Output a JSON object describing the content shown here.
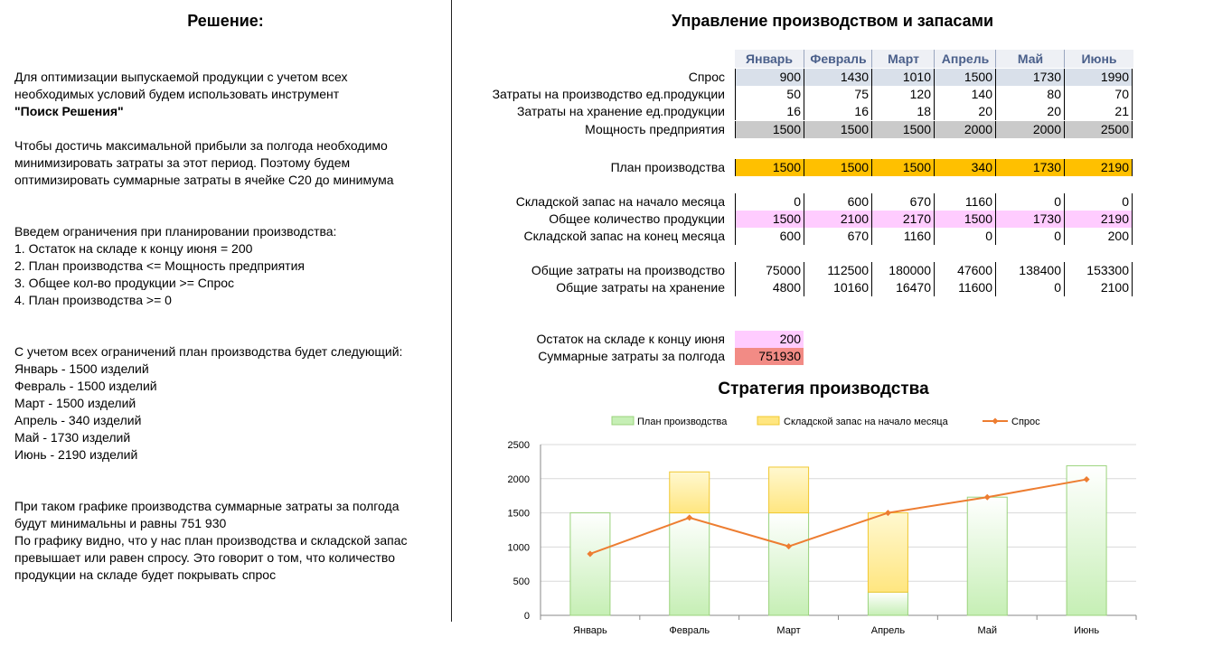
{
  "left": {
    "title": "Решение:",
    "intro": [
      "Для оптимизации выпускаемой  продукции с учетом всех",
      "необходимых условий будем использовать инструмент"
    ],
    "tool_name": "\"Поиск Решения\"",
    "goal": [
      "Чтобы достичь максимальной прибыли за полгода необходимо",
      "минимизировать затраты за этот период. Поэтому будем",
      "оптимизировать суммарные затраты в ячейке С20 до минимума"
    ],
    "constraints": [
      "Введем ограничения при планировании производства:",
      "1. Остаток на складе к концу июня = 200",
      "2. План производства <= Мощность предприятия",
      "3. Общее кол-во продукции >= Спрос",
      "4. План производства >= 0"
    ],
    "plan": [
      "С учетом всех ограничений план производства будет следующий:",
      "Январь - 1500 изделий",
      "Февраль - 1500 изделий",
      "Март - 1500 изделий",
      "Апрель - 340 изделий",
      "Май - 1730 изделий",
      "Июнь - 2190 изделий"
    ],
    "conclusion": [
      "При таком графике производства суммарные затраты за полгода",
      "будут минимальны и равны 751 930",
      "По графику видно, что у нас план производства и складской запас",
      "превышает или равен спросу. Это говорит о том, что количество",
      "продукции на складе будет покрывать спрос"
    ]
  },
  "right": {
    "title": "Управление производством и запасами",
    "months": [
      "Январь",
      "Февраль",
      "Март",
      "Апрель",
      "Май",
      "Июнь"
    ],
    "rows": {
      "demand": {
        "label": "Спрос",
        "values": [
          "900",
          "1430",
          "1010",
          "1500",
          "1730",
          "1990"
        ]
      },
      "prod_cost": {
        "label": "Затраты на производство ед.продукции",
        "values": [
          "50",
          "75",
          "120",
          "140",
          "80",
          "70"
        ]
      },
      "store_cost": {
        "label": "Затраты на хранение ед.продукции",
        "values": [
          "16",
          "16",
          "18",
          "20",
          "20",
          "21"
        ]
      },
      "capacity": {
        "label": "Мощность предприятия",
        "values": [
          "1500",
          "1500",
          "1500",
          "2000",
          "2000",
          "2500"
        ]
      },
      "plan": {
        "label": "План производства",
        "values": [
          "1500",
          "1500",
          "1500",
          "340",
          "1730",
          "2190"
        ]
      },
      "stock_start": {
        "label": "Складской запас на начало месяца",
        "values": [
          "0",
          "600",
          "670",
          "1160",
          "0",
          "0"
        ]
      },
      "total_qty": {
        "label": "Общее количество продукции",
        "values": [
          "1500",
          "2100",
          "2170",
          "1500",
          "1730",
          "2190"
        ]
      },
      "stock_end": {
        "label": "Складской запас на конец месяца",
        "values": [
          "600",
          "670",
          "1160",
          "0",
          "0",
          "200"
        ]
      },
      "total_prod": {
        "label": "Общие затраты на производство",
        "values": [
          "75000",
          "112500",
          "180000",
          "47600",
          "138400",
          "153300"
        ]
      },
      "total_store": {
        "label": "Общие затраты на хранение",
        "values": [
          "4800",
          "10160",
          "16470",
          "11600",
          "0",
          "2100"
        ]
      }
    },
    "end_stock": {
      "label": "Остаток на складе к концу июня",
      "value": "200"
    },
    "total_cost": {
      "label": "Суммарные затраты за полгода",
      "value": "751930"
    }
  },
  "chart_data": {
    "type": "bar",
    "title": "Стратегия производства",
    "categories": [
      "Январь",
      "Февраль",
      "Март",
      "Апрель",
      "Май",
      "Июнь"
    ],
    "series": [
      {
        "name": "План производства",
        "type": "bar",
        "stacked": true,
        "values": [
          1500,
          1500,
          1500,
          340,
          1730,
          2190
        ]
      },
      {
        "name": "Складской запас на начало месяца",
        "type": "bar",
        "stacked": true,
        "values": [
          0,
          600,
          670,
          1160,
          0,
          0
        ]
      },
      {
        "name": "Спрос",
        "type": "line",
        "values": [
          900,
          1430,
          1010,
          1500,
          1730,
          1990
        ]
      }
    ],
    "ylim": [
      0,
      2500
    ],
    "yticks": [
      0,
      500,
      1000,
      1500,
      2000,
      2500
    ],
    "grid": true,
    "legend": "top",
    "colors": {
      "plan": "#c6efb5",
      "stock": "#ffe680",
      "demand": "#ed7d31"
    }
  }
}
